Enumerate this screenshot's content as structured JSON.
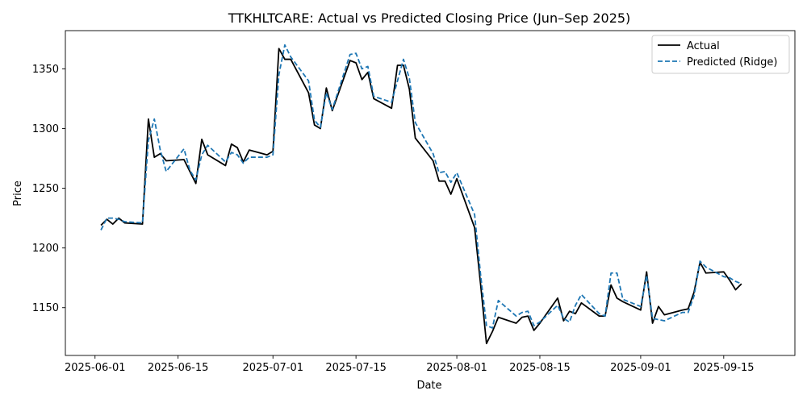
{
  "chart_data": {
    "type": "line",
    "title": "TTKHLTCARE: Actual vs Predicted Closing Price (Jun–Sep 2025)",
    "xlabel": "Date",
    "ylabel": "Price",
    "xlim": [
      "2025-05-27",
      "2025-09-27"
    ],
    "ylim": [
      1110,
      1382
    ],
    "x_ticks": [
      "2025-06-01",
      "2025-06-15",
      "2025-07-01",
      "2025-07-15",
      "2025-08-01",
      "2025-08-15",
      "2025-09-01",
      "2025-09-15"
    ],
    "y_ticks": [
      1150,
      1200,
      1250,
      1300,
      1350
    ],
    "grid": false,
    "legend_position": "top-right",
    "x": [
      "2025-06-02",
      "2025-06-03",
      "2025-06-04",
      "2025-06-05",
      "2025-06-06",
      "2025-06-09",
      "2025-06-10",
      "2025-06-11",
      "2025-06-12",
      "2025-06-13",
      "2025-06-16",
      "2025-06-17",
      "2025-06-18",
      "2025-06-19",
      "2025-06-20",
      "2025-06-23",
      "2025-06-24",
      "2025-06-25",
      "2025-06-26",
      "2025-06-27",
      "2025-06-30",
      "2025-07-01",
      "2025-07-02",
      "2025-07-03",
      "2025-07-04",
      "2025-07-07",
      "2025-07-08",
      "2025-07-09",
      "2025-07-10",
      "2025-07-11",
      "2025-07-14",
      "2025-07-15",
      "2025-07-16",
      "2025-07-17",
      "2025-07-18",
      "2025-07-21",
      "2025-07-22",
      "2025-07-23",
      "2025-07-24",
      "2025-07-25",
      "2025-07-28",
      "2025-07-29",
      "2025-07-30",
      "2025-07-31",
      "2025-08-01",
      "2025-08-04",
      "2025-08-05",
      "2025-08-06",
      "2025-08-07",
      "2025-08-08",
      "2025-08-11",
      "2025-08-12",
      "2025-08-13",
      "2025-08-14",
      "2025-08-15",
      "2025-08-18",
      "2025-08-19",
      "2025-08-20",
      "2025-08-21",
      "2025-08-22",
      "2025-08-25",
      "2025-08-26",
      "2025-08-27",
      "2025-08-28",
      "2025-08-29",
      "2025-09-01",
      "2025-09-02",
      "2025-09-03",
      "2025-09-04",
      "2025-09-05",
      "2025-09-08",
      "2025-09-09",
      "2025-09-10",
      "2025-09-11",
      "2025-09-12",
      "2025-09-15",
      "2025-09-16",
      "2025-09-17",
      "2025-09-18"
    ],
    "series": [
      {
        "name": "Actual",
        "color": "#000000",
        "style": "solid",
        "values": [
          1219,
          1224,
          1220,
          1225,
          1221,
          1220,
          1308,
          1276,
          1279,
          1273,
          1274,
          1264,
          1254,
          1291,
          1278,
          1269,
          1287,
          1284,
          1272,
          1282,
          1278,
          1281,
          1367,
          1358,
          1358,
          1330,
          1303,
          1300,
          1334,
          1315,
          1357,
          1355,
          1341,
          1347,
          1325,
          1317,
          1353,
          1353,
          1333,
          1292,
          1273,
          1256,
          1256,
          1245,
          1258,
          1217,
          1170,
          1120,
          1130,
          1142,
          1137,
          1142,
          1143,
          1131,
          1137,
          1158,
          1139,
          1147,
          1145,
          1154,
          1143,
          1143,
          1169,
          1158,
          1155,
          1148,
          1180,
          1137,
          1151,
          1144,
          1148,
          1149,
          1163,
          1188,
          1179,
          1180,
          1173,
          1165,
          1170
        ]
      },
      {
        "name": "Predicted (Ridge)",
        "color": "#1f77b4",
        "style": "dashed",
        "values": [
          1215,
          1225,
          1225,
          1224,
          1222,
          1221,
          1290,
          1308,
          1282,
          1264,
          1283,
          1265,
          1257,
          1278,
          1286,
          1272,
          1280,
          1278,
          1271,
          1276,
          1276,
          1278,
          1345,
          1370,
          1360,
          1340,
          1307,
          1301,
          1330,
          1316,
          1362,
          1363,
          1350,
          1352,
          1327,
          1322,
          1340,
          1358,
          1342,
          1305,
          1279,
          1263,
          1264,
          1255,
          1263,
          1228,
          1178,
          1135,
          1133,
          1156,
          1143,
          1146,
          1147,
          1135,
          1138,
          1152,
          1141,
          1138,
          1152,
          1161,
          1145,
          1143,
          1179,
          1179,
          1157,
          1151,
          1177,
          1141,
          1140,
          1139,
          1146,
          1146,
          1160,
          1189,
          1184,
          1176,
          1175,
          1172,
          1170
        ]
      }
    ]
  }
}
